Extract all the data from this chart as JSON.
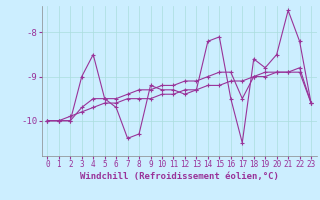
{
  "xlabel": "Windchill (Refroidissement éolien,°C)",
  "x_values": [
    0,
    1,
    2,
    3,
    4,
    5,
    6,
    7,
    8,
    9,
    10,
    11,
    12,
    13,
    14,
    15,
    16,
    17,
    18,
    19,
    20,
    21,
    22,
    23
  ],
  "series1": [
    -10.0,
    -10.0,
    -10.0,
    -9.0,
    -8.5,
    -9.5,
    -9.7,
    -10.4,
    -10.3,
    -9.2,
    -9.3,
    -9.3,
    -9.4,
    -9.3,
    -8.2,
    -8.1,
    -9.5,
    -10.5,
    -8.6,
    -8.8,
    -8.5,
    -7.5,
    -8.2,
    -9.6
  ],
  "series2": [
    -10.0,
    -10.0,
    -10.0,
    -9.7,
    -9.5,
    -9.5,
    -9.5,
    -9.4,
    -9.3,
    -9.3,
    -9.2,
    -9.2,
    -9.1,
    -9.1,
    -9.0,
    -8.9,
    -8.9,
    -9.5,
    -9.0,
    -8.9,
    -8.9,
    -8.9,
    -8.9,
    -9.6
  ],
  "series3": [
    -10.0,
    -10.0,
    -9.9,
    -9.8,
    -9.7,
    -9.6,
    -9.6,
    -9.5,
    -9.5,
    -9.5,
    -9.4,
    -9.4,
    -9.3,
    -9.3,
    -9.2,
    -9.2,
    -9.1,
    -9.1,
    -9.0,
    -9.0,
    -8.9,
    -8.9,
    -8.8,
    -9.6
  ],
  "line_color": "#993399",
  "marker": "+",
  "markersize": 3,
  "linewidth": 0.8,
  "background_color": "#cceeff",
  "grid_color": "#aadddd",
  "axis_color": "#993399",
  "text_color": "#993399",
  "ylim": [
    -10.8,
    -7.4
  ],
  "yticks": [
    -10,
    -9,
    -8
  ],
  "xlim": [
    -0.5,
    23.5
  ],
  "xticks": [
    0,
    1,
    2,
    3,
    4,
    5,
    6,
    7,
    8,
    9,
    10,
    11,
    12,
    13,
    14,
    15,
    16,
    17,
    18,
    19,
    20,
    21,
    22,
    23
  ],
  "tick_fontsize": 5.5,
  "xlabel_fontsize": 6.5
}
